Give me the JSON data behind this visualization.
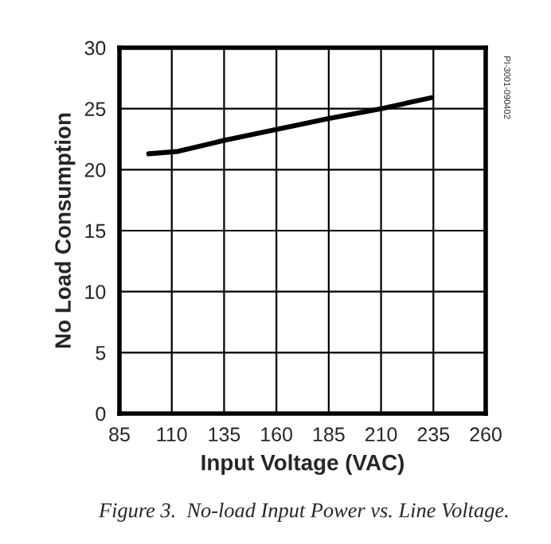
{
  "chart_data": {
    "type": "line",
    "xlabel": "Input Voltage (VAC)",
    "ylabel": "No Load Consumption",
    "x": [
      99,
      113,
      135,
      160,
      185,
      210,
      234
    ],
    "series": [
      {
        "color": "#000000",
        "values": [
          21.3,
          21.5,
          22.4,
          23.3,
          24.2,
          25.0,
          25.9
        ]
      }
    ],
    "xlim": [
      85,
      260
    ],
    "xticks": [
      85,
      110,
      135,
      160,
      185,
      210,
      235,
      260
    ],
    "ylim": [
      0,
      30
    ],
    "yticks": [
      0,
      5,
      10,
      15,
      20,
      25,
      30
    ],
    "grid": true,
    "marker": "none",
    "line_style": "solid",
    "annotations": [
      "PI-3001-090402",
      "Figure 3.  No-load Input Power vs. Line Voltage."
    ]
  }
}
